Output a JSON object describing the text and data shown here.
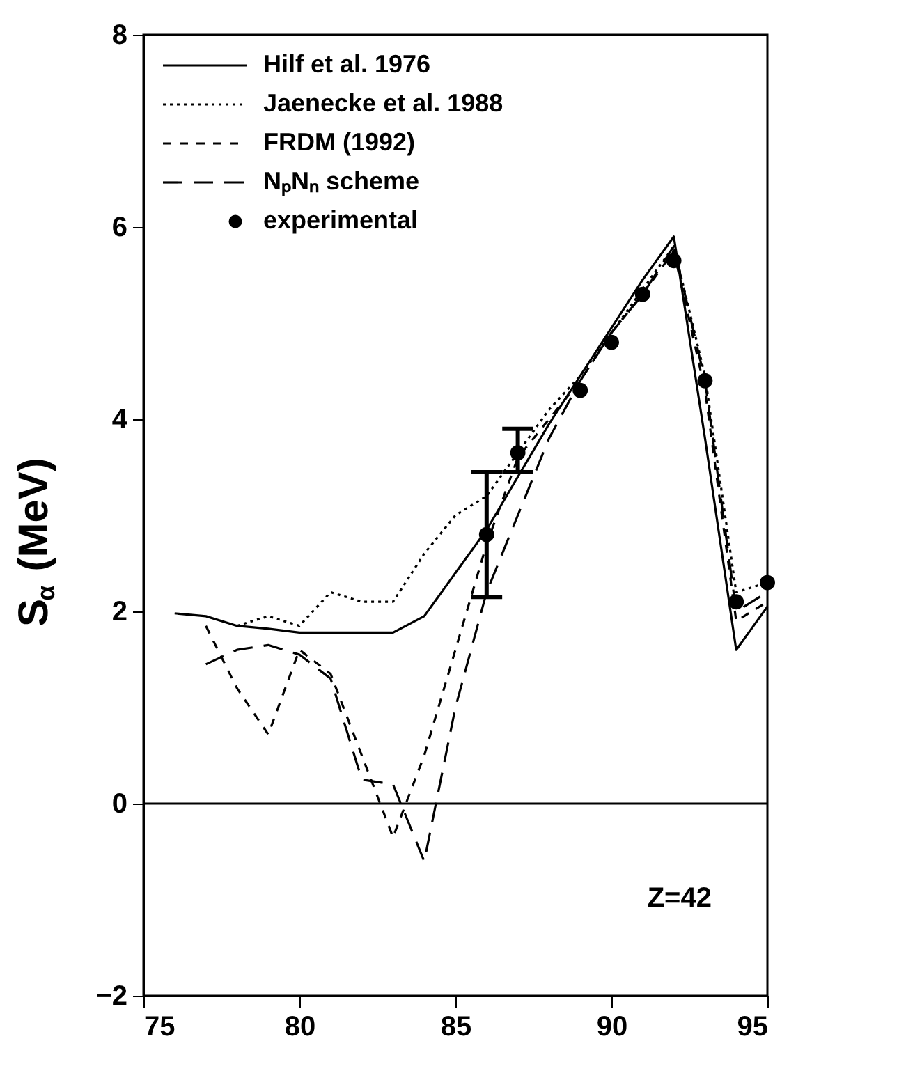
{
  "chart_data": {
    "type": "line",
    "ylabel": "S$_{α}$ (MeV)",
    "xlim": [
      75,
      95
    ],
    "xticks": [
      75,
      80,
      85,
      90,
      95
    ],
    "ylim": [
      -2,
      8
    ],
    "yticks": [
      -2,
      0,
      2,
      4,
      6,
      8
    ],
    "grid": false,
    "legend": "top left",
    "annotations": [
      "Z=42"
    ],
    "ref_lines": [
      {
        "axis": "y",
        "value": 0,
        "color": "#000000",
        "line_style": "solid"
      }
    ],
    "series": [
      {
        "name": "Hilf et al. 1976",
        "color": "#000000",
        "line_style": "solid",
        "x": [
          76,
          77,
          78,
          79,
          80,
          81,
          82,
          83,
          84,
          85,
          86,
          87,
          88,
          89,
          90,
          91,
          92,
          93,
          94,
          95
        ],
        "values": [
          1.98,
          1.95,
          1.85,
          1.82,
          1.78,
          1.78,
          1.78,
          1.78,
          1.95,
          2.4,
          2.85,
          3.4,
          3.95,
          4.45,
          4.95,
          5.45,
          5.9,
          3.8,
          1.6,
          2.05
        ]
      },
      {
        "name": "Jaenecke et al. 1988",
        "color": "#000000",
        "line_style": "dotted",
        "x": [
          78,
          79,
          80,
          81,
          82,
          83,
          84,
          85,
          86,
          87,
          88,
          89,
          90,
          91,
          92,
          93,
          94,
          95
        ],
        "values": [
          1.85,
          1.95,
          1.85,
          2.2,
          2.1,
          2.1,
          2.6,
          3.0,
          3.2,
          3.65,
          4.1,
          4.45,
          4.9,
          5.35,
          5.8,
          4.45,
          2.2,
          2.3
        ]
      },
      {
        "name": "FRDM (1992)",
        "color": "#000000",
        "line_style": "dashed",
        "x": [
          77,
          78,
          79,
          80,
          81,
          82,
          83,
          84,
          85,
          86,
          87,
          88,
          89,
          90,
          91,
          92,
          93,
          94,
          95
        ],
        "values": [
          1.85,
          1.2,
          0.72,
          1.6,
          1.35,
          0.5,
          -0.35,
          0.5,
          1.6,
          2.7,
          3.6,
          4.0,
          4.4,
          4.9,
          5.3,
          5.75,
          4.3,
          1.9,
          2.1
        ]
      },
      {
        "name": "NₚNₙ scheme",
        "color": "#000000",
        "line_style": "dashed",
        "x": [
          77,
          78,
          79,
          80,
          81,
          82,
          83,
          84,
          85,
          86,
          87,
          88,
          89,
          90,
          91,
          92,
          93,
          94,
          95
        ],
        "values": [
          1.45,
          1.6,
          1.65,
          1.55,
          1.3,
          0.25,
          0.2,
          -0.6,
          1.0,
          2.2,
          3.0,
          3.8,
          4.4,
          4.9,
          5.3,
          5.8,
          4.4,
          2.0,
          2.2
        ]
      },
      {
        "name": "experimental",
        "type": "scatter",
        "marker": "circle",
        "color": "#000000",
        "x": [
          86,
          87,
          89,
          90,
          91,
          92,
          93,
          94,
          95
        ],
        "values": [
          2.8,
          3.65,
          4.3,
          4.8,
          5.3,
          5.65,
          4.4,
          2.1,
          2.3
        ],
        "errors": [
          [
            2.15,
            3.45
          ],
          [
            3.45,
            3.9
          ],
          null,
          null,
          null,
          null,
          null,
          null,
          null
        ]
      }
    ]
  }
}
